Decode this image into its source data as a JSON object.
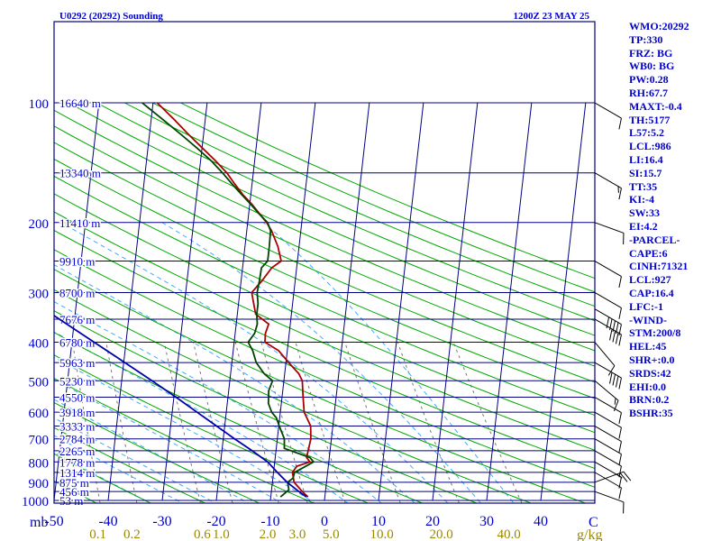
{
  "header": {
    "station": "U0292 (20292) Sounding",
    "time": "1200Z 23 MAY 25"
  },
  "stats": [
    "WMO:20292",
    "TP:330",
    "FRZ: BG",
    "WB0: BG",
    "PW:0.28",
    "RH:67.7",
    "MAXT:-0.4",
    "TH:5177",
    "L57:5.2",
    "LCL:986",
    "LI:16.4",
    "SI:15.7",
    "TT:35",
    "KI:-4",
    "SW:33",
    "EI:4.2",
    "-PARCEL-",
    "CAPE:6",
    "CINH:71321",
    "LCL:927",
    "CAP:16.4",
    "LFC:-1",
    "-WIND-",
    "STM:200/8",
    "HEL:45",
    "SHR+:0.0",
    "SRDS:42",
    "EHI:0.0",
    "BRN:0.2",
    "BSHR:35"
  ],
  "colors": {
    "frame": "#000080",
    "isobar": "#000080",
    "isotherm": "#000080",
    "dry_adiabat": "#00aa00",
    "moist_adiabat": "#44aaff",
    "mixing_ratio": "#777777",
    "temperature": "#aa0000",
    "dewpoint": "#004400",
    "parcel": "#0000aa",
    "text": "#0000cc",
    "mixing_labels": "#998800"
  },
  "chart_data": {
    "type": "line",
    "title": "U0292 (20292) Sounding",
    "xlim": [
      -50,
      50
    ],
    "ylim": [
      1000,
      100
    ],
    "y_scale": "log",
    "y_unit": "mb",
    "x_unit": "C",
    "pressure_ticks": [
      100,
      200,
      300,
      400,
      500,
      600,
      700,
      800,
      900,
      1000
    ],
    "temperature_ticks": [
      -50,
      -40,
      -30,
      -20,
      -10,
      0,
      10,
      20,
      30,
      40
    ],
    "temperature_tick_labels": [
      "-50",
      "-40",
      "-30",
      "-20",
      "-10",
      "0",
      "10",
      "20",
      "30",
      "40"
    ],
    "mixing_ratio_unit": "g/kg",
    "mixing_ratio_labels": [
      {
        "label": "0.1",
        "t1000": -41.9
      },
      {
        "label": "0.2",
        "t1000": -35.6
      },
      {
        "label": "0.6",
        "t1000": -22.6
      },
      {
        "label": "1.0",
        "t1000": -19.1
      },
      {
        "label": "2.0",
        "t1000": -10.5
      },
      {
        "label": "3.0",
        "t1000": -5.0
      },
      {
        "label": "5.0",
        "t1000": 1.2
      },
      {
        "label": "10.0",
        "t1000": 10.6
      },
      {
        "label": "20.0",
        "t1000": 21.6
      },
      {
        "label": "40.0",
        "t1000": 34.1
      }
    ],
    "heights": [
      {
        "p": 100,
        "label": "16640 m"
      },
      {
        "p": 150,
        "label": "13340 m"
      },
      {
        "p": 200,
        "label": "11410 m"
      },
      {
        "p": 250,
        "label": "9910 m"
      },
      {
        "p": 300,
        "label": "8700 m"
      },
      {
        "p": 350,
        "label": "7676 m"
      },
      {
        "p": 400,
        "label": "6780 m"
      },
      {
        "p": 450,
        "label": "5963 m"
      },
      {
        "p": 500,
        "label": "5230 m"
      },
      {
        "p": 550,
        "label": "4550 m"
      },
      {
        "p": 600,
        "label": "3918 m"
      },
      {
        "p": 650,
        "label": "3333 m"
      },
      {
        "p": 700,
        "label": "2784 m"
      },
      {
        "p": 750,
        "label": "2265 m"
      },
      {
        "p": 800,
        "label": "1778 m"
      },
      {
        "p": 850,
        "label": "1314 m"
      },
      {
        "p": 900,
        "label": "875 m"
      },
      {
        "p": 950,
        "label": "456 m"
      },
      {
        "p": 1000,
        "label": "53 m"
      }
    ],
    "series": [
      {
        "key": "temperature",
        "points": [
          [
            980,
            -3.1
          ],
          [
            960,
            -3.9
          ],
          [
            940,
            -4.6
          ],
          [
            920,
            -5.3
          ],
          [
            900,
            -6.0
          ],
          [
            850,
            -6.5
          ],
          [
            820,
            -5.8
          ],
          [
            800,
            -3.5
          ],
          [
            780,
            -4.2
          ],
          [
            740,
            -4.0
          ],
          [
            700,
            -3.8
          ],
          [
            650,
            -4.1
          ],
          [
            600,
            -5.6
          ],
          [
            550,
            -6.1
          ],
          [
            500,
            -6.6
          ],
          [
            480,
            -7.4
          ],
          [
            450,
            -9.5
          ],
          [
            420,
            -11.6
          ],
          [
            400,
            -14.3
          ],
          [
            380,
            -14.4
          ],
          [
            360,
            -14.0
          ],
          [
            340,
            -16.6
          ],
          [
            320,
            -17.2
          ],
          [
            300,
            -17.8
          ],
          [
            280,
            -16.1
          ],
          [
            260,
            -14.6
          ],
          [
            250,
            -13.0
          ],
          [
            230,
            -13.9
          ],
          [
            210,
            -15.4
          ],
          [
            200,
            -16.5
          ],
          [
            190,
            -18.0
          ],
          [
            180,
            -19.6
          ],
          [
            170,
            -21.5
          ],
          [
            160,
            -23.2
          ],
          [
            150,
            -24.9
          ],
          [
            140,
            -27.2
          ],
          [
            130,
            -29.9
          ],
          [
            120,
            -32.8
          ],
          [
            110,
            -35.8
          ],
          [
            100,
            -39.2
          ]
        ]
      },
      {
        "key": "dewpoint",
        "points": [
          [
            980,
            -8.2
          ],
          [
            960,
            -7.5
          ],
          [
            940,
            -6.8
          ],
          [
            920,
            -7.0
          ],
          [
            900,
            -7.2
          ],
          [
            880,
            -6.3
          ],
          [
            850,
            -6.1
          ],
          [
            800,
            -2.8
          ],
          [
            780,
            -3.6
          ],
          [
            740,
            -8.5
          ],
          [
            700,
            -8.7
          ],
          [
            650,
            -9.9
          ],
          [
            620,
            -10.6
          ],
          [
            600,
            -11.6
          ],
          [
            570,
            -12.4
          ],
          [
            530,
            -12.6
          ],
          [
            500,
            -12.1
          ],
          [
            480,
            -13.8
          ],
          [
            450,
            -15.5
          ],
          [
            420,
            -16.4
          ],
          [
            400,
            -17.4
          ],
          [
            380,
            -16.4
          ],
          [
            360,
            -16.1
          ],
          [
            340,
            -16.4
          ],
          [
            320,
            -16.4
          ],
          [
            300,
            -16.8
          ],
          [
            280,
            -16.6
          ],
          [
            260,
            -16.5
          ],
          [
            250,
            -15.5
          ],
          [
            230,
            -15.5
          ],
          [
            210,
            -15.6
          ],
          [
            200,
            -16.3
          ],
          [
            190,
            -18.1
          ],
          [
            180,
            -19.8
          ],
          [
            170,
            -21.7
          ],
          [
            160,
            -23.7
          ],
          [
            150,
            -25.7
          ],
          [
            140,
            -28.0
          ],
          [
            130,
            -30.9
          ],
          [
            120,
            -34.2
          ],
          [
            110,
            -37.9
          ],
          [
            100,
            -42.0
          ]
        ]
      },
      {
        "key": "parcel",
        "points": [
          [
            980,
            -3.4
          ],
          [
            950,
            -4.9
          ],
          [
            900,
            -7.3
          ],
          [
            850,
            -9.3
          ],
          [
            800,
            -11.3
          ],
          [
            750,
            -14.4
          ],
          [
            700,
            -17.9
          ],
          [
            650,
            -21.5
          ],
          [
            600,
            -25.4
          ],
          [
            550,
            -29.6
          ],
          [
            500,
            -34.4
          ],
          [
            450,
            -39.8
          ],
          [
            400,
            -45.9
          ],
          [
            350,
            -52.8
          ],
          [
            300,
            -60.8
          ],
          [
            250,
            -70.3
          ],
          [
            200,
            -81.9
          ],
          [
            150,
            -96.6
          ],
          [
            100,
            -116.9
          ]
        ]
      }
    ],
    "wind_barbs": [
      {
        "p": 100,
        "dir": 300,
        "speed": 10
      },
      {
        "p": 150,
        "dir": 300,
        "speed": 15
      },
      {
        "p": 200,
        "dir": 290,
        "speed": 10
      },
      {
        "p": 250,
        "dir": 300,
        "speed": 10
      },
      {
        "p": 300,
        "dir": 300,
        "speed": 10
      },
      {
        "p": 330,
        "dir": 300,
        "speed": 50
      },
      {
        "p": 350,
        "dir": 300,
        "speed": 40
      },
      {
        "p": 400,
        "dir": 320,
        "speed": 10
      },
      {
        "p": 450,
        "dir": 300,
        "speed": 40
      },
      {
        "p": 500,
        "dir": 310,
        "speed": 15
      },
      {
        "p": 550,
        "dir": 300,
        "speed": 10
      },
      {
        "p": 600,
        "dir": 300,
        "speed": 10
      },
      {
        "p": 650,
        "dir": 300,
        "speed": 10
      },
      {
        "p": 700,
        "dir": 300,
        "speed": 10
      },
      {
        "p": 750,
        "dir": 300,
        "speed": 10
      },
      {
        "p": 800,
        "dir": 300,
        "speed": 10
      },
      {
        "p": 850,
        "dir": 300,
        "speed": 10
      },
      {
        "p": 900,
        "dir": 250,
        "speed": 25
      },
      {
        "p": 950,
        "dir": 290,
        "speed": 10
      }
    ]
  }
}
